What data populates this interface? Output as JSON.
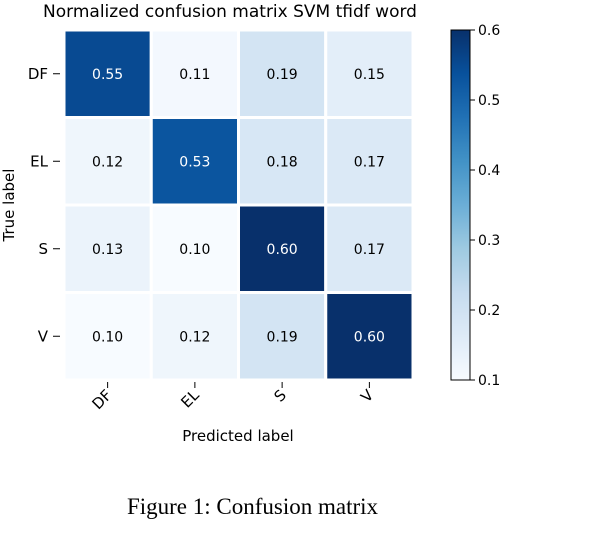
{
  "caption": "Figure 1: Confusion matrix",
  "chart_data": {
    "type": "heatmap",
    "title": "Normalized confusion matrix SVM tfidf word",
    "xlabel": "Predicted label",
    "ylabel": "True label",
    "x_categories": [
      "DF",
      "EL",
      "S",
      "V"
    ],
    "y_categories": [
      "DF",
      "EL",
      "S",
      "V"
    ],
    "values": [
      [
        "0.55",
        "0.11",
        "0.19",
        "0.15"
      ],
      [
        "0.12",
        "0.53",
        "0.18",
        "0.17"
      ],
      [
        "0.13",
        "0.10",
        "0.60",
        "0.17"
      ],
      [
        "0.10",
        "0.12",
        "0.19",
        "0.60"
      ]
    ],
    "colormap": "Blues",
    "colorbar": {
      "range": [
        0.1,
        0.6
      ],
      "ticks": [
        "0.1",
        "0.2",
        "0.3",
        "0.4",
        "0.5",
        "0.6"
      ],
      "tick_values": [
        0.1,
        0.2,
        0.3,
        0.4,
        0.5,
        0.6
      ]
    },
    "colors": {
      "low": "#f7fbff",
      "high": "#08306b",
      "grid": "#ffffff",
      "text_dark": "#000000",
      "text_light": "#ffffff"
    }
  }
}
